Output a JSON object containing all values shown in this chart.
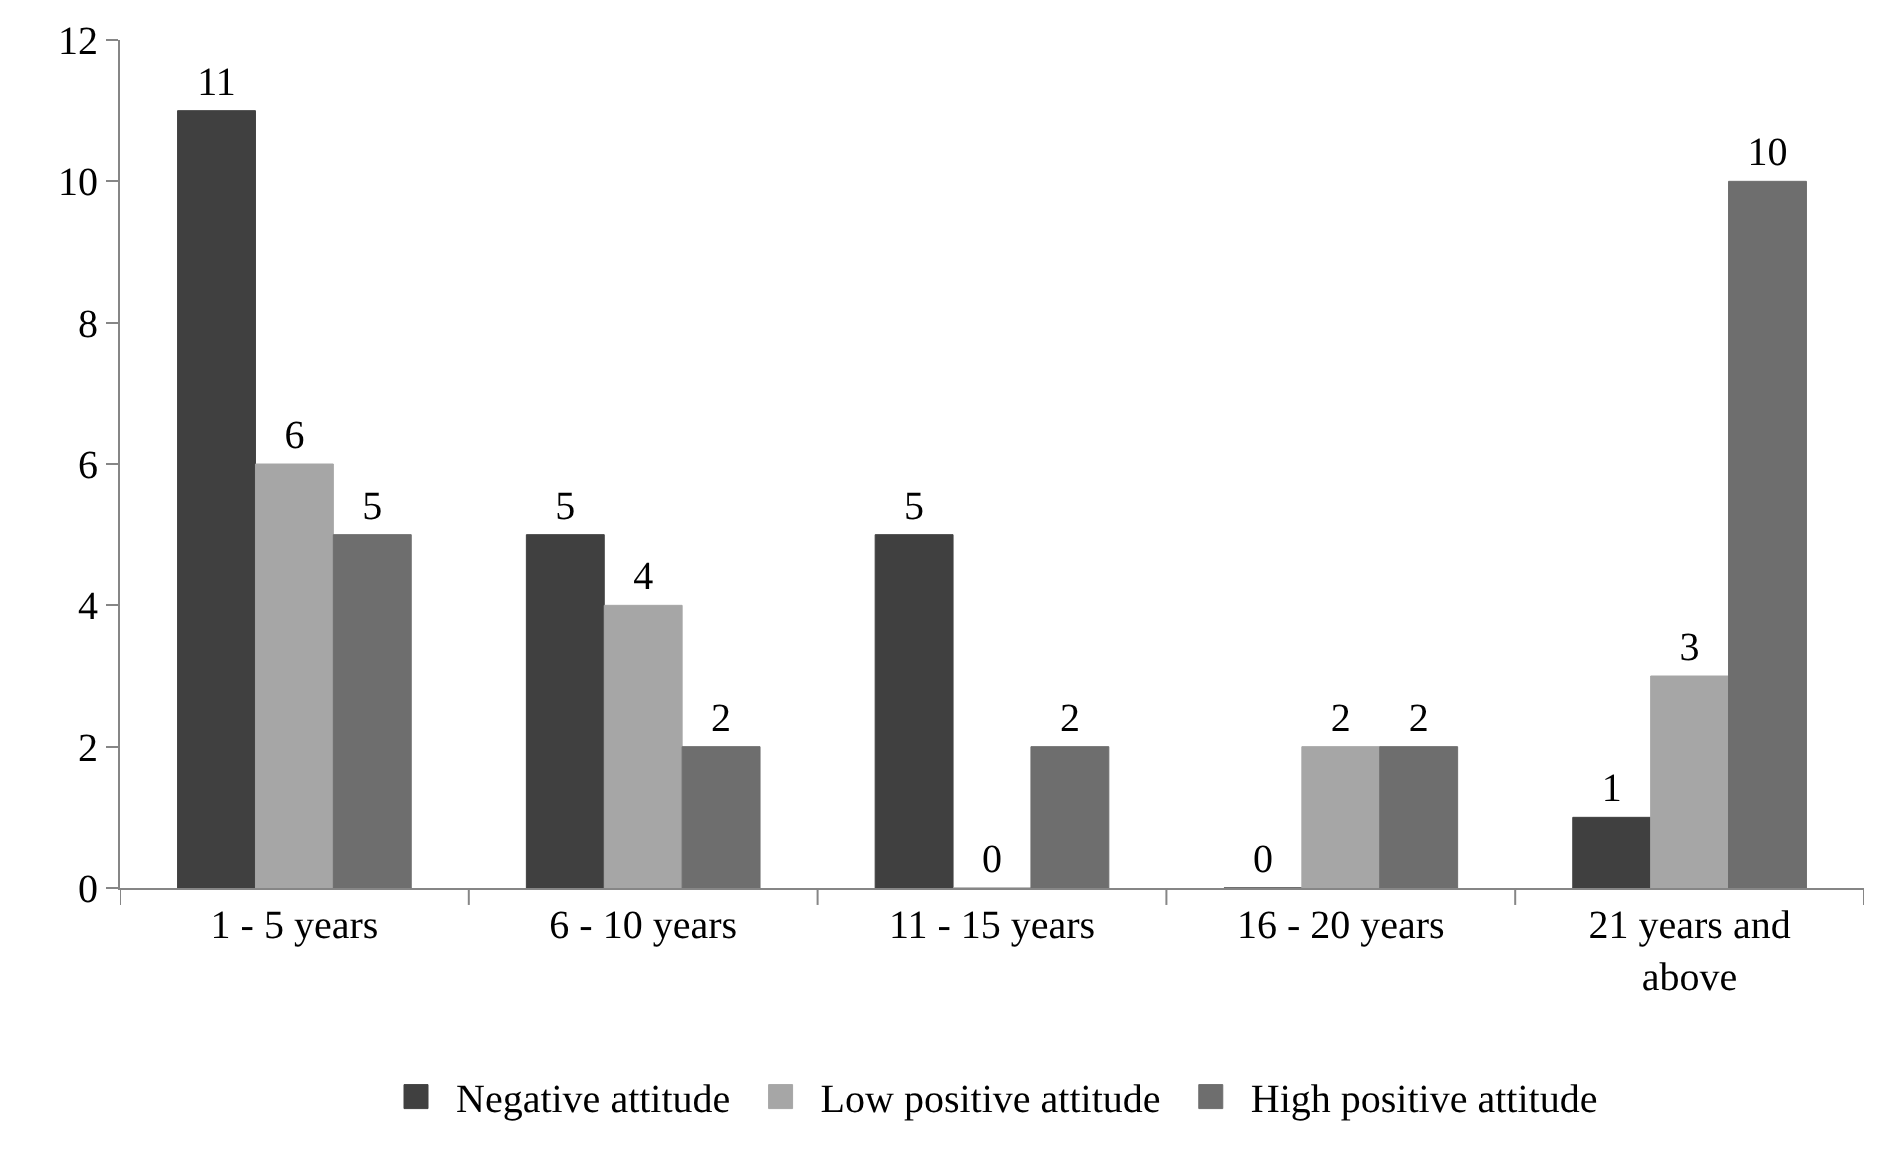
{
  "chart_data": {
    "type": "bar",
    "categories": [
      "1 - 5 years",
      "6 - 10 years",
      "11 - 15 years",
      "16 - 20 years",
      "21 years and above"
    ],
    "series": [
      {
        "name": "Negative attitude",
        "color": "#404040",
        "values": [
          11,
          5,
          5,
          0,
          1
        ]
      },
      {
        "name": "Low positive attitude",
        "color": "#a6a6a6",
        "values": [
          6,
          4,
          0,
          2,
          3
        ]
      },
      {
        "name": "High positive attitude",
        "color": "#6e6e6e",
        "values": [
          5,
          2,
          2,
          2,
          10
        ]
      }
    ],
    "ylim": [
      0,
      12
    ],
    "yticks": [
      0,
      2,
      4,
      6,
      8,
      10,
      12
    ],
    "grid": false,
    "legend": "bottom",
    "data_labels": true
  }
}
